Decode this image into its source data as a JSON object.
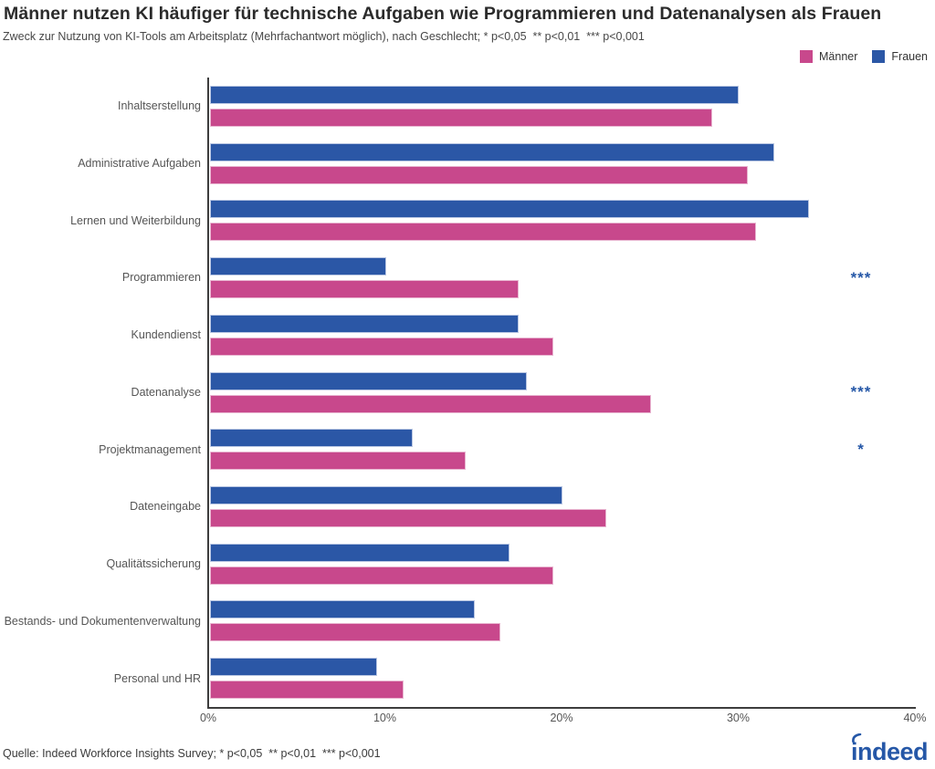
{
  "header": {
    "title": "Männer nutzen KI häufiger für technische Aufgaben wie Programmieren und Datenanalysen als Frauen",
    "subtitle": "Zweck zur Nutzung von KI-Tools am Arbeitsplatz (Mehrfachantwort möglich), nach Geschlecht; * p<0,05  ** p<0,01  *** p<0,001"
  },
  "legend": {
    "items": [
      {
        "label": "Männer",
        "color": "#C8488C"
      },
      {
        "label": "Frauen",
        "color": "#2B57A6"
      }
    ]
  },
  "footer": {
    "source": "Quelle: Indeed Workforce Insights Survey; * p<0,05  ** p<0,01  *** p<0,001"
  },
  "brand": {
    "logo_text": "indeed",
    "logo_color": "#2557A7"
  },
  "colors": {
    "maenner": "#C8488C",
    "frauen": "#2B57A6",
    "significance": "#2557A7",
    "axis": "#3d3d3d"
  },
  "chart_data": {
    "type": "bar",
    "orientation": "horizontal",
    "title": "Männer nutzen KI häufiger für technische Aufgaben wie Programmieren und Datenanalysen als Frauen",
    "xlabel": "",
    "ylabel": "",
    "xlim": [
      0,
      40
    ],
    "x_ticks": [
      "0%",
      "10%",
      "20%",
      "30%",
      "40%"
    ],
    "grid": false,
    "legend_position": "top-right",
    "bar_order_top_to_bottom": [
      "Frauen",
      "Männer"
    ],
    "categories": [
      "Inhaltserstellung",
      "Administrative Aufgaben",
      "Lernen und Weiterbildung",
      "Programmieren",
      "Kundendienst",
      "Datenanalyse",
      "Projektmanagement",
      "Dateneingabe",
      "Qualitätssicherung",
      "Bestands- und Dokumentenverwaltung",
      "Personal und HR"
    ],
    "series": [
      {
        "name": "Männer",
        "color": "#C8488C",
        "values": [
          28.5,
          30.5,
          31,
          17.5,
          19.5,
          25,
          14.5,
          22.5,
          19.5,
          16.5,
          11
        ]
      },
      {
        "name": "Frauen",
        "color": "#2B57A6",
        "values": [
          30,
          32,
          34,
          10,
          17.5,
          18,
          11.5,
          20,
          17,
          15,
          9.5
        ]
      }
    ],
    "significance_markers": [
      "",
      "",
      "",
      "***",
      "",
      "***",
      "*",
      "",
      "",
      "",
      ""
    ]
  }
}
